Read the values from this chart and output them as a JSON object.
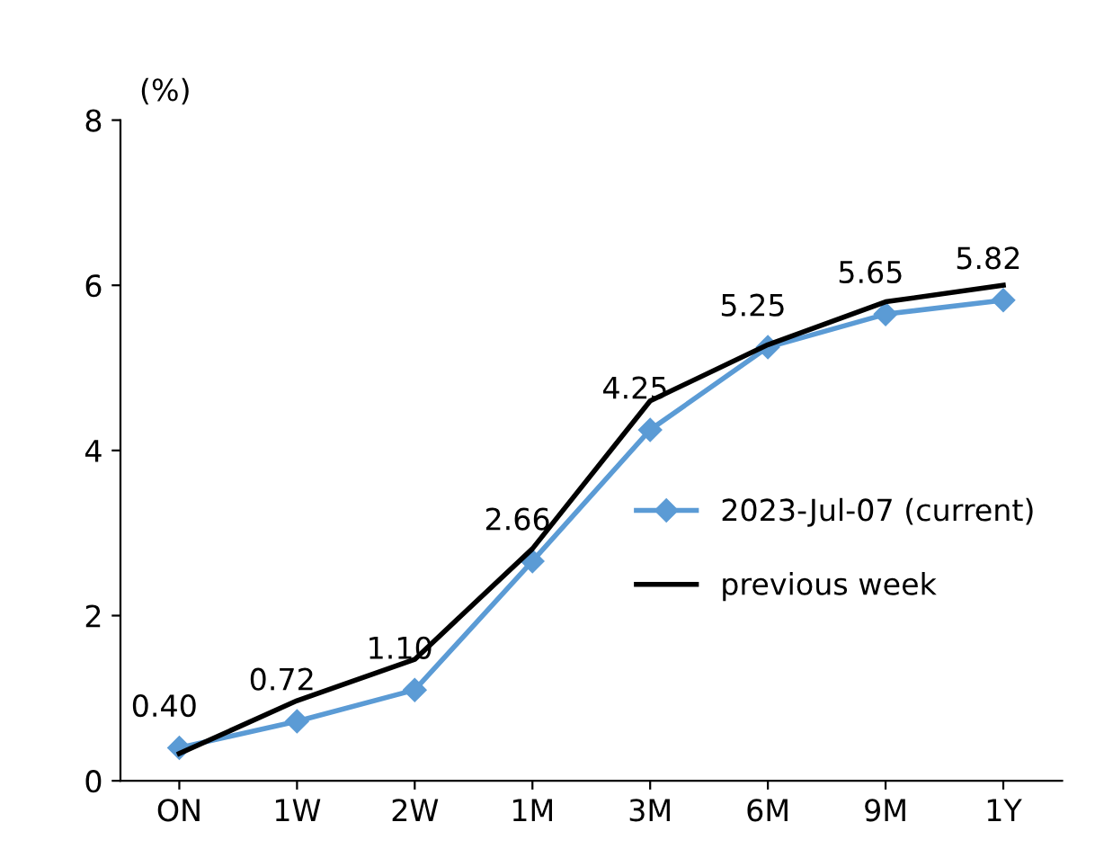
{
  "chart_data": {
    "type": "line",
    "ylabel": "(%)",
    "categories": [
      "ON",
      "1W",
      "2W",
      "1M",
      "3M",
      "6M",
      "9M",
      "1Y"
    ],
    "series": [
      {
        "name": "2023-Jul-07 (current)",
        "color": "#5b9bd5",
        "marker": "diamond",
        "values": [
          0.4,
          0.72,
          1.1,
          2.66,
          4.25,
          5.25,
          5.65,
          5.82
        ],
        "value_labels": [
          "0.40",
          "0.72",
          "1.10",
          "2.66",
          "4.25",
          "5.25",
          "5.65",
          "5.82"
        ]
      },
      {
        "name": "previous week",
        "color": "#000000",
        "marker": "none",
        "values": [
          0.33,
          0.97,
          1.47,
          2.81,
          4.6,
          5.28,
          5.8,
          6.0
        ]
      }
    ],
    "ylim": [
      0,
      8
    ],
    "yticks": [
      0,
      2,
      4,
      6,
      8
    ],
    "grid": false,
    "legend": "right",
    "line_style": "solid"
  }
}
